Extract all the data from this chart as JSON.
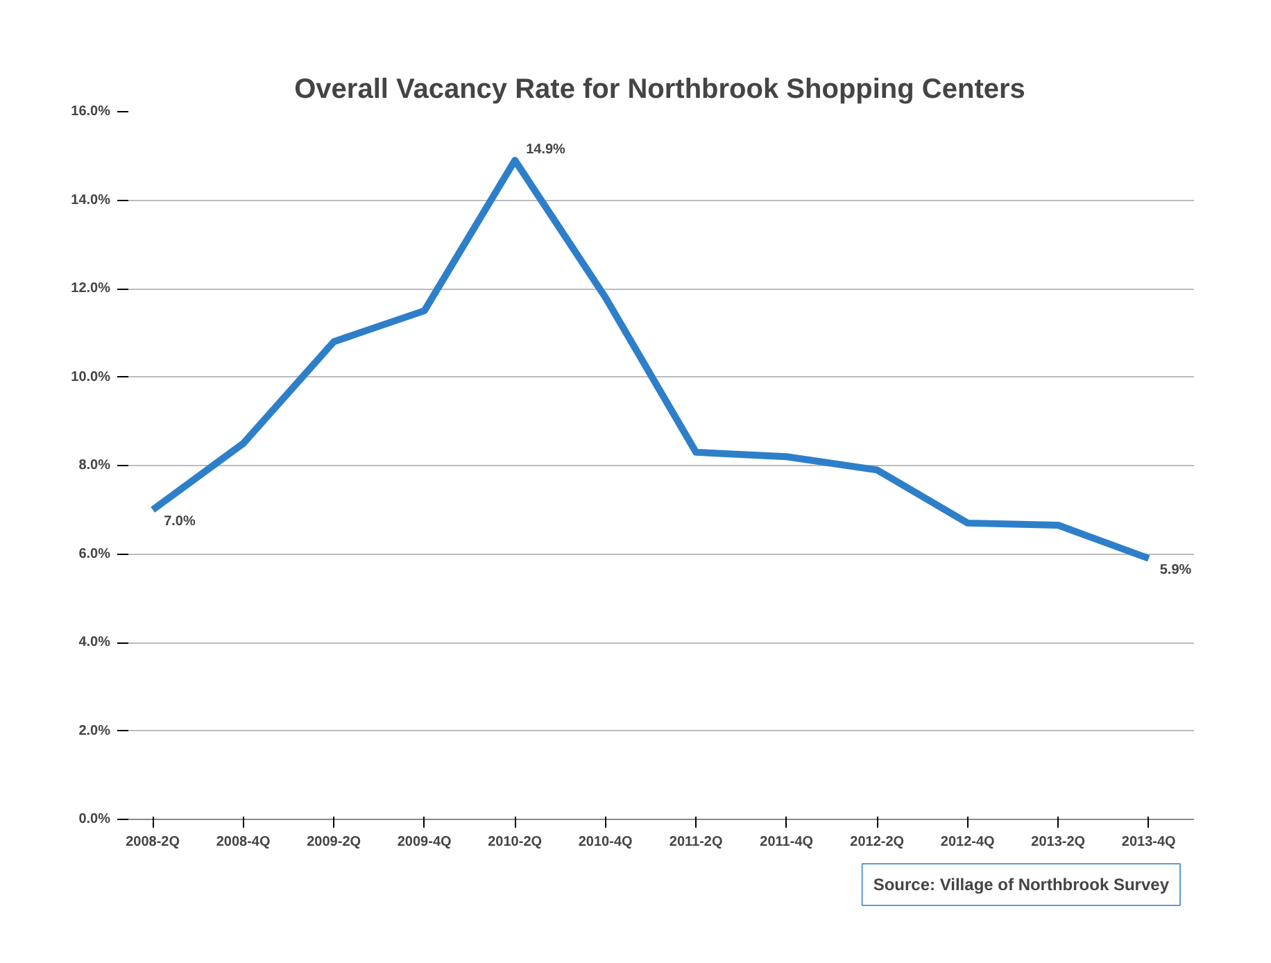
{
  "chart_data": {
    "type": "line",
    "title": "Overall Vacancy Rate for Northbrook Shopping Centers",
    "categories": [
      "2008-2Q",
      "2008-4Q",
      "2009-2Q",
      "2009-4Q",
      "2010-2Q",
      "2010-4Q",
      "2011-2Q",
      "2011-4Q",
      "2012-2Q",
      "2012-4Q",
      "2013-2Q",
      "2013-4Q"
    ],
    "series": [
      {
        "color": "#2e7fc9",
        "values": [
          7.0,
          8.5,
          10.8,
          11.5,
          14.9,
          11.8,
          8.3,
          8.2,
          7.9,
          6.7,
          6.65,
          5.9
        ],
        "value_labels": [
          "7.0%",
          null,
          null,
          null,
          "14.9%",
          null,
          null,
          null,
          null,
          null,
          null,
          "5.9%"
        ]
      }
    ],
    "ylim": [
      0,
      16
    ],
    "yticks": [
      {
        "value": 0,
        "label": "0.0%"
      },
      {
        "value": 2,
        "label": "2.0%"
      },
      {
        "value": 4,
        "label": "4.0%"
      },
      {
        "value": 6,
        "label": "6.0%"
      },
      {
        "value": 8,
        "label": "8.0%"
      },
      {
        "value": 10,
        "label": "10.0%"
      },
      {
        "value": 12,
        "label": "12.0%"
      },
      {
        "value": 14,
        "label": "14.0%"
      },
      {
        "value": 16,
        "label": "16.0%"
      }
    ],
    "grid": "y",
    "marker": "none",
    "line_style": "solid",
    "annotations": [
      "Source: Village of Northbrook Survey"
    ]
  }
}
